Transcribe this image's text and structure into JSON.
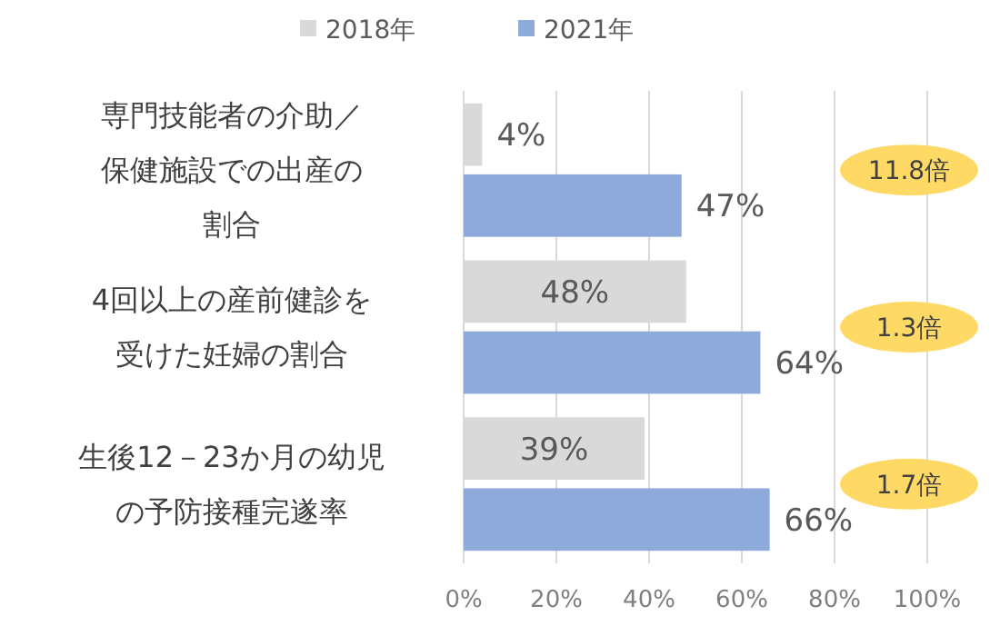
{
  "chart_data": {
    "type": "bar",
    "orientation": "horizontal",
    "categories": [
      "専門技能者の介助／保健施設での出産の割合",
      "4回以上の産前健診を受けた妊婦の割合",
      "生後12－23か月の幼児の予防接種完遂率"
    ],
    "series": [
      {
        "name": "2018年",
        "color": "#d9d9d9",
        "values": [
          4,
          48,
          39
        ],
        "value_labels": [
          "4%",
          "48%",
          "39%"
        ]
      },
      {
        "name": "2021年",
        "color": "#8eaadb",
        "values": [
          47,
          64,
          66
        ],
        "value_labels": [
          "47%",
          "64%",
          "66%"
        ]
      }
    ],
    "xlim": [
      0,
      100
    ],
    "xticks": [
      {
        "value": 0,
        "label": "0%"
      },
      {
        "value": 20,
        "label": "20%"
      },
      {
        "value": 40,
        "label": "40%"
      },
      {
        "value": 60,
        "label": "60%"
      },
      {
        "value": 80,
        "label": "80%"
      },
      {
        "value": 100,
        "label": "100%"
      }
    ],
    "grid": "x",
    "legend": "top",
    "annotations": [
      "11.8倍",
      "1.3倍",
      "1.7倍"
    ]
  }
}
